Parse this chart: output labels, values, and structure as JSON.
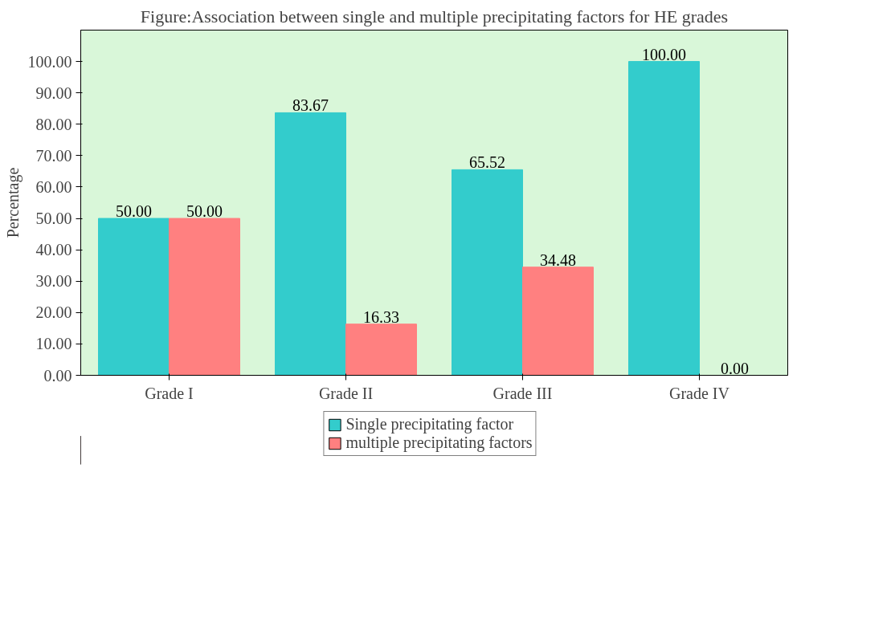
{
  "chart_data": {
    "type": "bar",
    "title": "Figure:Association between single and multiple precipitating factors for HE grades",
    "ylabel": "Percentage",
    "categories": [
      "Grade I",
      "Grade II",
      "Grade III",
      "Grade IV"
    ],
    "series": [
      {
        "name": "Single precipitating factor",
        "color": "#33cccc",
        "values": [
          50.0,
          83.67,
          65.52,
          100.0
        ],
        "value_labels": [
          "50.00",
          "83.67",
          "65.52",
          "100.00"
        ]
      },
      {
        "name": "multiple precipitating factors",
        "color": "#ff8080",
        "values": [
          50.0,
          16.33,
          34.48,
          0.0
        ],
        "value_labels": [
          "50.00",
          "16.33",
          "34.48",
          "0.00"
        ]
      }
    ],
    "ylim": [
      0,
      110
    ],
    "yticks": [
      {
        "value": 0,
        "label": "0.00"
      },
      {
        "value": 10,
        "label": "10.00"
      },
      {
        "value": 20,
        "label": "20.00"
      },
      {
        "value": 30,
        "label": "30.00"
      },
      {
        "value": 40,
        "label": "40.00"
      },
      {
        "value": 50,
        "label": "50.00"
      },
      {
        "value": 60,
        "label": "60.00"
      },
      {
        "value": 70,
        "label": "70.00"
      },
      {
        "value": 80,
        "label": "80.00"
      },
      {
        "value": 90,
        "label": "90.00"
      },
      {
        "value": 100,
        "label": "100.00"
      }
    ],
    "grid": false,
    "legend": "bottom"
  }
}
